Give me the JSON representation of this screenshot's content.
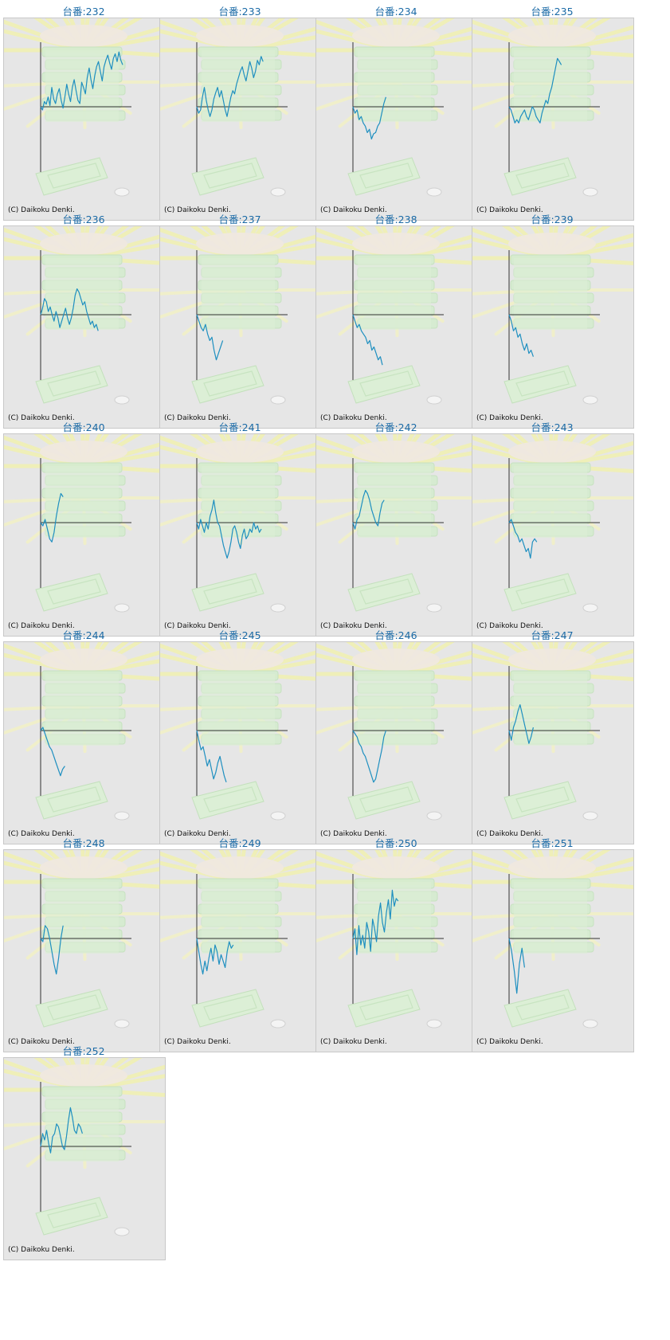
{
  "brand": "Daikoku Denki",
  "line_color": "#1e8fc0",
  "axis_color": "#333333",
  "background_color": "#e6e6e6",
  "title_color": "#1a6aa6",
  "chart_data": [
    {
      "type": "line",
      "title": "台番:232",
      "copyright": "(C) Daikoku Denki.",
      "xlim": [
        0,
        100
      ],
      "ylim": [
        -100,
        100
      ],
      "values": [
        0,
        -5,
        8,
        4,
        15,
        2,
        30,
        12,
        5,
        20,
        28,
        10,
        -2,
        15,
        35,
        20,
        8,
        30,
        42,
        25,
        10,
        5,
        38,
        30,
        20,
        45,
        60,
        42,
        28,
        48,
        62,
        70,
        55,
        40,
        62,
        72,
        80,
        68,
        58,
        75,
        82,
        70,
        85,
        72,
        65
      ]
    },
    {
      "type": "line",
      "title": "台番:233",
      "copyright": "(C) Daikoku Denki.",
      "xlim": [
        0,
        100
      ],
      "ylim": [
        -100,
        100
      ],
      "values": [
        0,
        -10,
        -5,
        15,
        30,
        10,
        -5,
        -15,
        -5,
        12,
        22,
        30,
        15,
        25,
        10,
        -5,
        -15,
        0,
        15,
        25,
        20,
        35,
        45,
        55,
        62,
        50,
        40,
        55,
        70,
        60,
        45,
        55,
        72,
        65,
        78,
        70
      ]
    },
    {
      "type": "line",
      "title": "台番:234",
      "copyright": "(C) Daikoku Denki.",
      "xlim": [
        0,
        100
      ],
      "ylim": [
        -100,
        100
      ],
      "values": [
        0,
        -10,
        -5,
        -20,
        -15,
        -25,
        -30,
        -40,
        -35,
        -50,
        -42,
        -40,
        -30,
        -25,
        -10,
        5,
        15
      ]
    },
    {
      "type": "line",
      "title": "台番:235",
      "copyright": "(C) Daikoku Denki.",
      "xlim": [
        0,
        100
      ],
      "ylim": [
        -100,
        100
      ],
      "values": [
        0,
        -5,
        -15,
        -25,
        -20,
        -25,
        -15,
        -10,
        -5,
        -15,
        -20,
        -10,
        0,
        -5,
        -15,
        -20,
        -25,
        -10,
        0,
        10,
        5,
        20,
        30,
        45,
        60,
        75,
        70,
        65
      ]
    },
    {
      "type": "line",
      "title": "台番:236",
      "copyright": "(C) Daikoku Denki.",
      "xlim": [
        0,
        100
      ],
      "ylim": [
        -100,
        100
      ],
      "values": [
        0,
        10,
        25,
        20,
        5,
        12,
        0,
        -10,
        5,
        -5,
        -20,
        -10,
        0,
        10,
        -5,
        -15,
        -5,
        10,
        30,
        40,
        35,
        25,
        15,
        20,
        5,
        -5,
        -15,
        -10,
        -20,
        -15,
        -25
      ]
    },
    {
      "type": "line",
      "title": "台番:237",
      "copyright": "(C) Daikoku Denki.",
      "xlim": [
        0,
        100
      ],
      "ylim": [
        -100,
        100
      ],
      "values": [
        0,
        -10,
        -20,
        -25,
        -15,
        -30,
        -40,
        -35,
        -55,
        -70,
        -60,
        -50,
        -40
      ]
    },
    {
      "type": "line",
      "title": "台番:238",
      "copyright": "(C) Daikoku Denki.",
      "xlim": [
        0,
        100
      ],
      "ylim": [
        -100,
        100
      ],
      "values": [
        0,
        -10,
        -20,
        -15,
        -25,
        -30,
        -35,
        -45,
        -40,
        -55,
        -50,
        -60,
        -70,
        -65,
        -78
      ]
    },
    {
      "type": "line",
      "title": "台番:239",
      "copyright": "(C) Daikoku Denki.",
      "xlim": [
        0,
        100
      ],
      "ylim": [
        -100,
        100
      ],
      "values": [
        0,
        -10,
        -25,
        -20,
        -35,
        -30,
        -45,
        -55,
        -45,
        -60,
        -55,
        -65
      ]
    },
    {
      "type": "line",
      "title": "台番:240",
      "copyright": "(C) Daikoku Denki.",
      "xlim": [
        0,
        100
      ],
      "ylim": [
        -100,
        100
      ],
      "values": [
        0,
        -5,
        5,
        -10,
        -25,
        -30,
        -15,
        10,
        30,
        45,
        40
      ]
    },
    {
      "type": "line",
      "title": "台番:241",
      "copyright": "(C) Daikoku Denki.",
      "xlim": [
        0,
        100
      ],
      "ylim": [
        -100,
        100
      ],
      "values": [
        0,
        -10,
        5,
        -5,
        -15,
        0,
        -10,
        10,
        20,
        35,
        15,
        0,
        -5,
        -20,
        -35,
        -45,
        -55,
        -45,
        -30,
        -10,
        -5,
        -15,
        -30,
        -40,
        -20,
        -10,
        -25,
        -20,
        -10,
        -15,
        0,
        -10,
        -5,
        -15,
        -10
      ]
    },
    {
      "type": "line",
      "title": "台番:242",
      "copyright": "(C) Daikoku Denki.",
      "xlim": [
        0,
        100
      ],
      "ylim": [
        -100,
        100
      ],
      "values": [
        0,
        -10,
        5,
        10,
        25,
        40,
        50,
        45,
        35,
        20,
        10,
        0,
        -5,
        15,
        30,
        35
      ]
    },
    {
      "type": "line",
      "title": "台番:243",
      "copyright": "(C) Daikoku Denki.",
      "xlim": [
        0,
        100
      ],
      "ylim": [
        -100,
        100
      ],
      "values": [
        0,
        5,
        -5,
        -15,
        -20,
        -30,
        -25,
        -35,
        -45,
        -40,
        -55,
        -30,
        -25,
        -30
      ]
    },
    {
      "type": "line",
      "title": "台番:244",
      "copyright": "(C) Daikoku Denki.",
      "xlim": [
        0,
        100
      ],
      "ylim": [
        -100,
        100
      ],
      "values": [
        0,
        5,
        -5,
        -15,
        -25,
        -30,
        -40,
        -50,
        -60,
        -70,
        -60,
        -55
      ]
    },
    {
      "type": "line",
      "title": "台番:245",
      "copyright": "(C) Daikoku Denki.",
      "xlim": [
        0,
        100
      ],
      "ylim": [
        -100,
        100
      ],
      "values": [
        0,
        -15,
        -30,
        -25,
        -40,
        -55,
        -45,
        -60,
        -75,
        -65,
        -50,
        -40,
        -55,
        -70,
        -80
      ]
    },
    {
      "type": "line",
      "title": "台番:246",
      "copyright": "(C) Daikoku Denki.",
      "xlim": [
        0,
        100
      ],
      "ylim": [
        -100,
        100
      ],
      "values": [
        0,
        -5,
        -10,
        -20,
        -25,
        -35,
        -40,
        -50,
        -60,
        -70,
        -80,
        -75,
        -60,
        -45,
        -30,
        -10,
        0
      ]
    },
    {
      "type": "line",
      "title": "台番:247",
      "copyright": "(C) Daikoku Denki.",
      "xlim": [
        0,
        100
      ],
      "ylim": [
        -100,
        100
      ],
      "values": [
        0,
        -15,
        5,
        15,
        30,
        40,
        25,
        10,
        -5,
        -20,
        -10,
        5
      ]
    },
    {
      "type": "line",
      "title": "台番:248",
      "copyright": "(C) Daikoku Denki.",
      "xlim": [
        0,
        100
      ],
      "ylim": [
        -100,
        100
      ],
      "values": [
        0,
        -5,
        20,
        15,
        0,
        -20,
        -40,
        -55,
        -30,
        0,
        20
      ]
    },
    {
      "type": "line",
      "title": "台番:249",
      "copyright": "(C) Daikoku Denki.",
      "xlim": [
        0,
        100
      ],
      "ylim": [
        -100,
        100
      ],
      "values": [
        0,
        -20,
        -40,
        -55,
        -35,
        -50,
        -30,
        -15,
        -35,
        -10,
        -20,
        -40,
        -25,
        -35,
        -45,
        -20,
        -5,
        -15,
        -10
      ]
    },
    {
      "type": "line",
      "title": "台番:250",
      "copyright": "(C) Daikoku Denki.",
      "xlim": [
        0,
        100
      ],
      "ylim": [
        -100,
        100
      ],
      "values": [
        0,
        15,
        -25,
        20,
        -10,
        5,
        -15,
        25,
        10,
        -20,
        30,
        15,
        -5,
        35,
        55,
        25,
        10,
        40,
        60,
        30,
        75,
        50,
        62,
        58
      ]
    },
    {
      "type": "line",
      "title": "台番:251",
      "copyright": "(C) Daikoku Denki.",
      "xlim": [
        0,
        100
      ],
      "ylim": [
        -100,
        100
      ],
      "values": [
        0,
        -20,
        -50,
        -85,
        -40,
        -15,
        -45
      ]
    },
    {
      "type": "line",
      "title": "台番:252",
      "copyright": "(C) Daikoku Denki.",
      "xlim": [
        0,
        100
      ],
      "ylim": [
        -100,
        100
      ],
      "values": [
        0,
        20,
        10,
        25,
        5,
        -10,
        15,
        20,
        35,
        30,
        15,
        0,
        -5,
        15,
        40,
        60,
        45,
        25,
        20,
        35,
        30,
        20
      ]
    }
  ]
}
